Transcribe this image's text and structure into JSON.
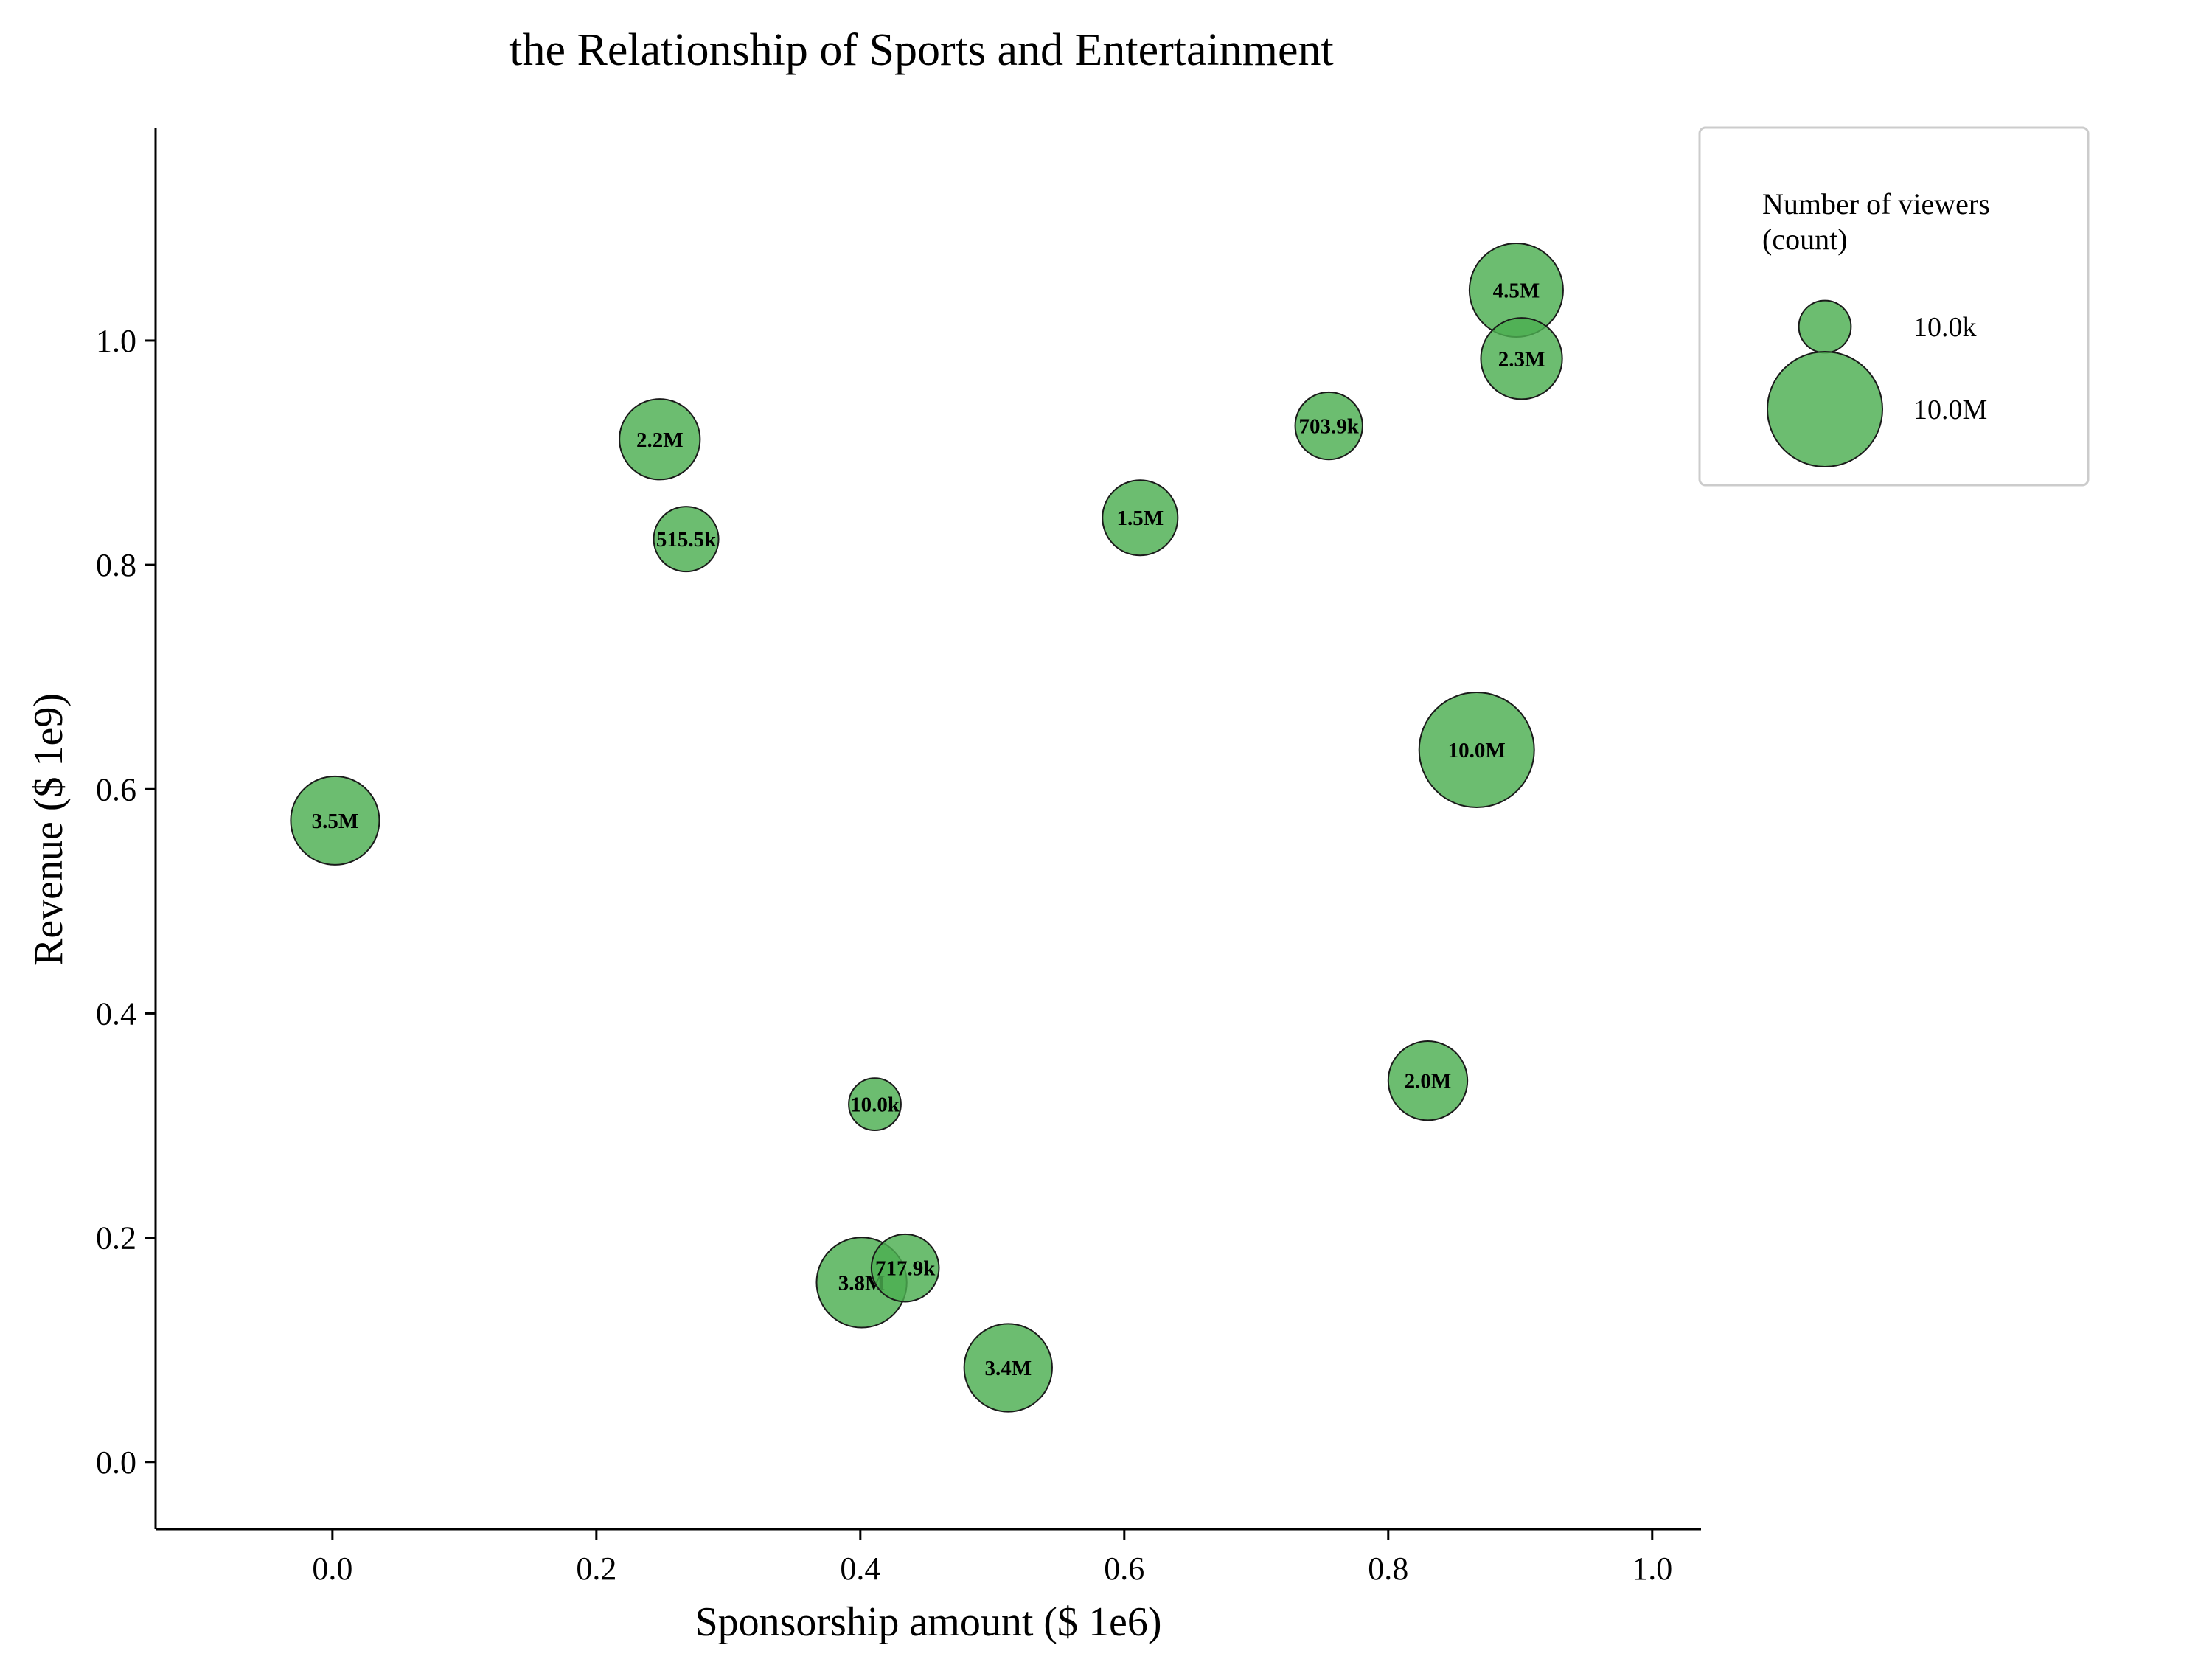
{
  "chart_data": {
    "type": "scatter",
    "title": "the Relationship of Sports and Entertainment",
    "xlabel": "Sponsorship amount ($ 1e6)",
    "ylabel": "Revenue ($ 1e9)",
    "xlim": [
      -0.134,
      1.037
    ],
    "ylim": [
      -0.06,
      1.19
    ],
    "xticks": [
      0.0,
      0.2,
      0.4,
      0.6,
      0.8,
      1.0
    ],
    "yticks": [
      0.0,
      0.2,
      0.4,
      0.6,
      0.8,
      1.0
    ],
    "xtick_labels": [
      "0.0",
      "0.2",
      "0.4",
      "0.6",
      "0.8",
      "1.0"
    ],
    "ytick_labels": [
      "0.0",
      "0.2",
      "0.4",
      "0.6",
      "0.8",
      "1.0"
    ],
    "grid": false,
    "bubble_color": "#4caf50",
    "size_field": "Number of viewers (count)",
    "points": [
      {
        "x": 0.002,
        "y": 0.572,
        "size": 3500000,
        "label": "3.5M"
      },
      {
        "x": 0.248,
        "y": 0.912,
        "size": 2200000,
        "label": "2.2M"
      },
      {
        "x": 0.268,
        "y": 0.823,
        "size": 515500,
        "label": "515.5k"
      },
      {
        "x": 0.411,
        "y": 0.319,
        "size": 10000,
        "label": "10.0k"
      },
      {
        "x": 0.401,
        "y": 0.16,
        "size": 3800000,
        "label": "3.8M"
      },
      {
        "x": 0.434,
        "y": 0.173,
        "size": 717900,
        "label": "717.9k"
      },
      {
        "x": 0.512,
        "y": 0.084,
        "size": 3400000,
        "label": "3.4M"
      },
      {
        "x": 0.612,
        "y": 0.842,
        "size": 1500000,
        "label": "1.5M"
      },
      {
        "x": 0.755,
        "y": 0.924,
        "size": 703900,
        "label": "703.9k"
      },
      {
        "x": 0.83,
        "y": 0.34,
        "size": 2000000,
        "label": "2.0M"
      },
      {
        "x": 0.867,
        "y": 0.635,
        "size": 10000000,
        "label": "10.0M"
      },
      {
        "x": 0.897,
        "y": 1.045,
        "size": 4500000,
        "label": "4.5M"
      },
      {
        "x": 0.901,
        "y": 0.984,
        "size": 2300000,
        "label": "2.3M"
      }
    ],
    "legend": {
      "position": "top-right",
      "title": "Number of viewers\n(count)",
      "entries": [
        {
          "size": 10000,
          "label": "10.0k"
        },
        {
          "size": 10000000,
          "label": "10.0M"
        }
      ]
    }
  }
}
